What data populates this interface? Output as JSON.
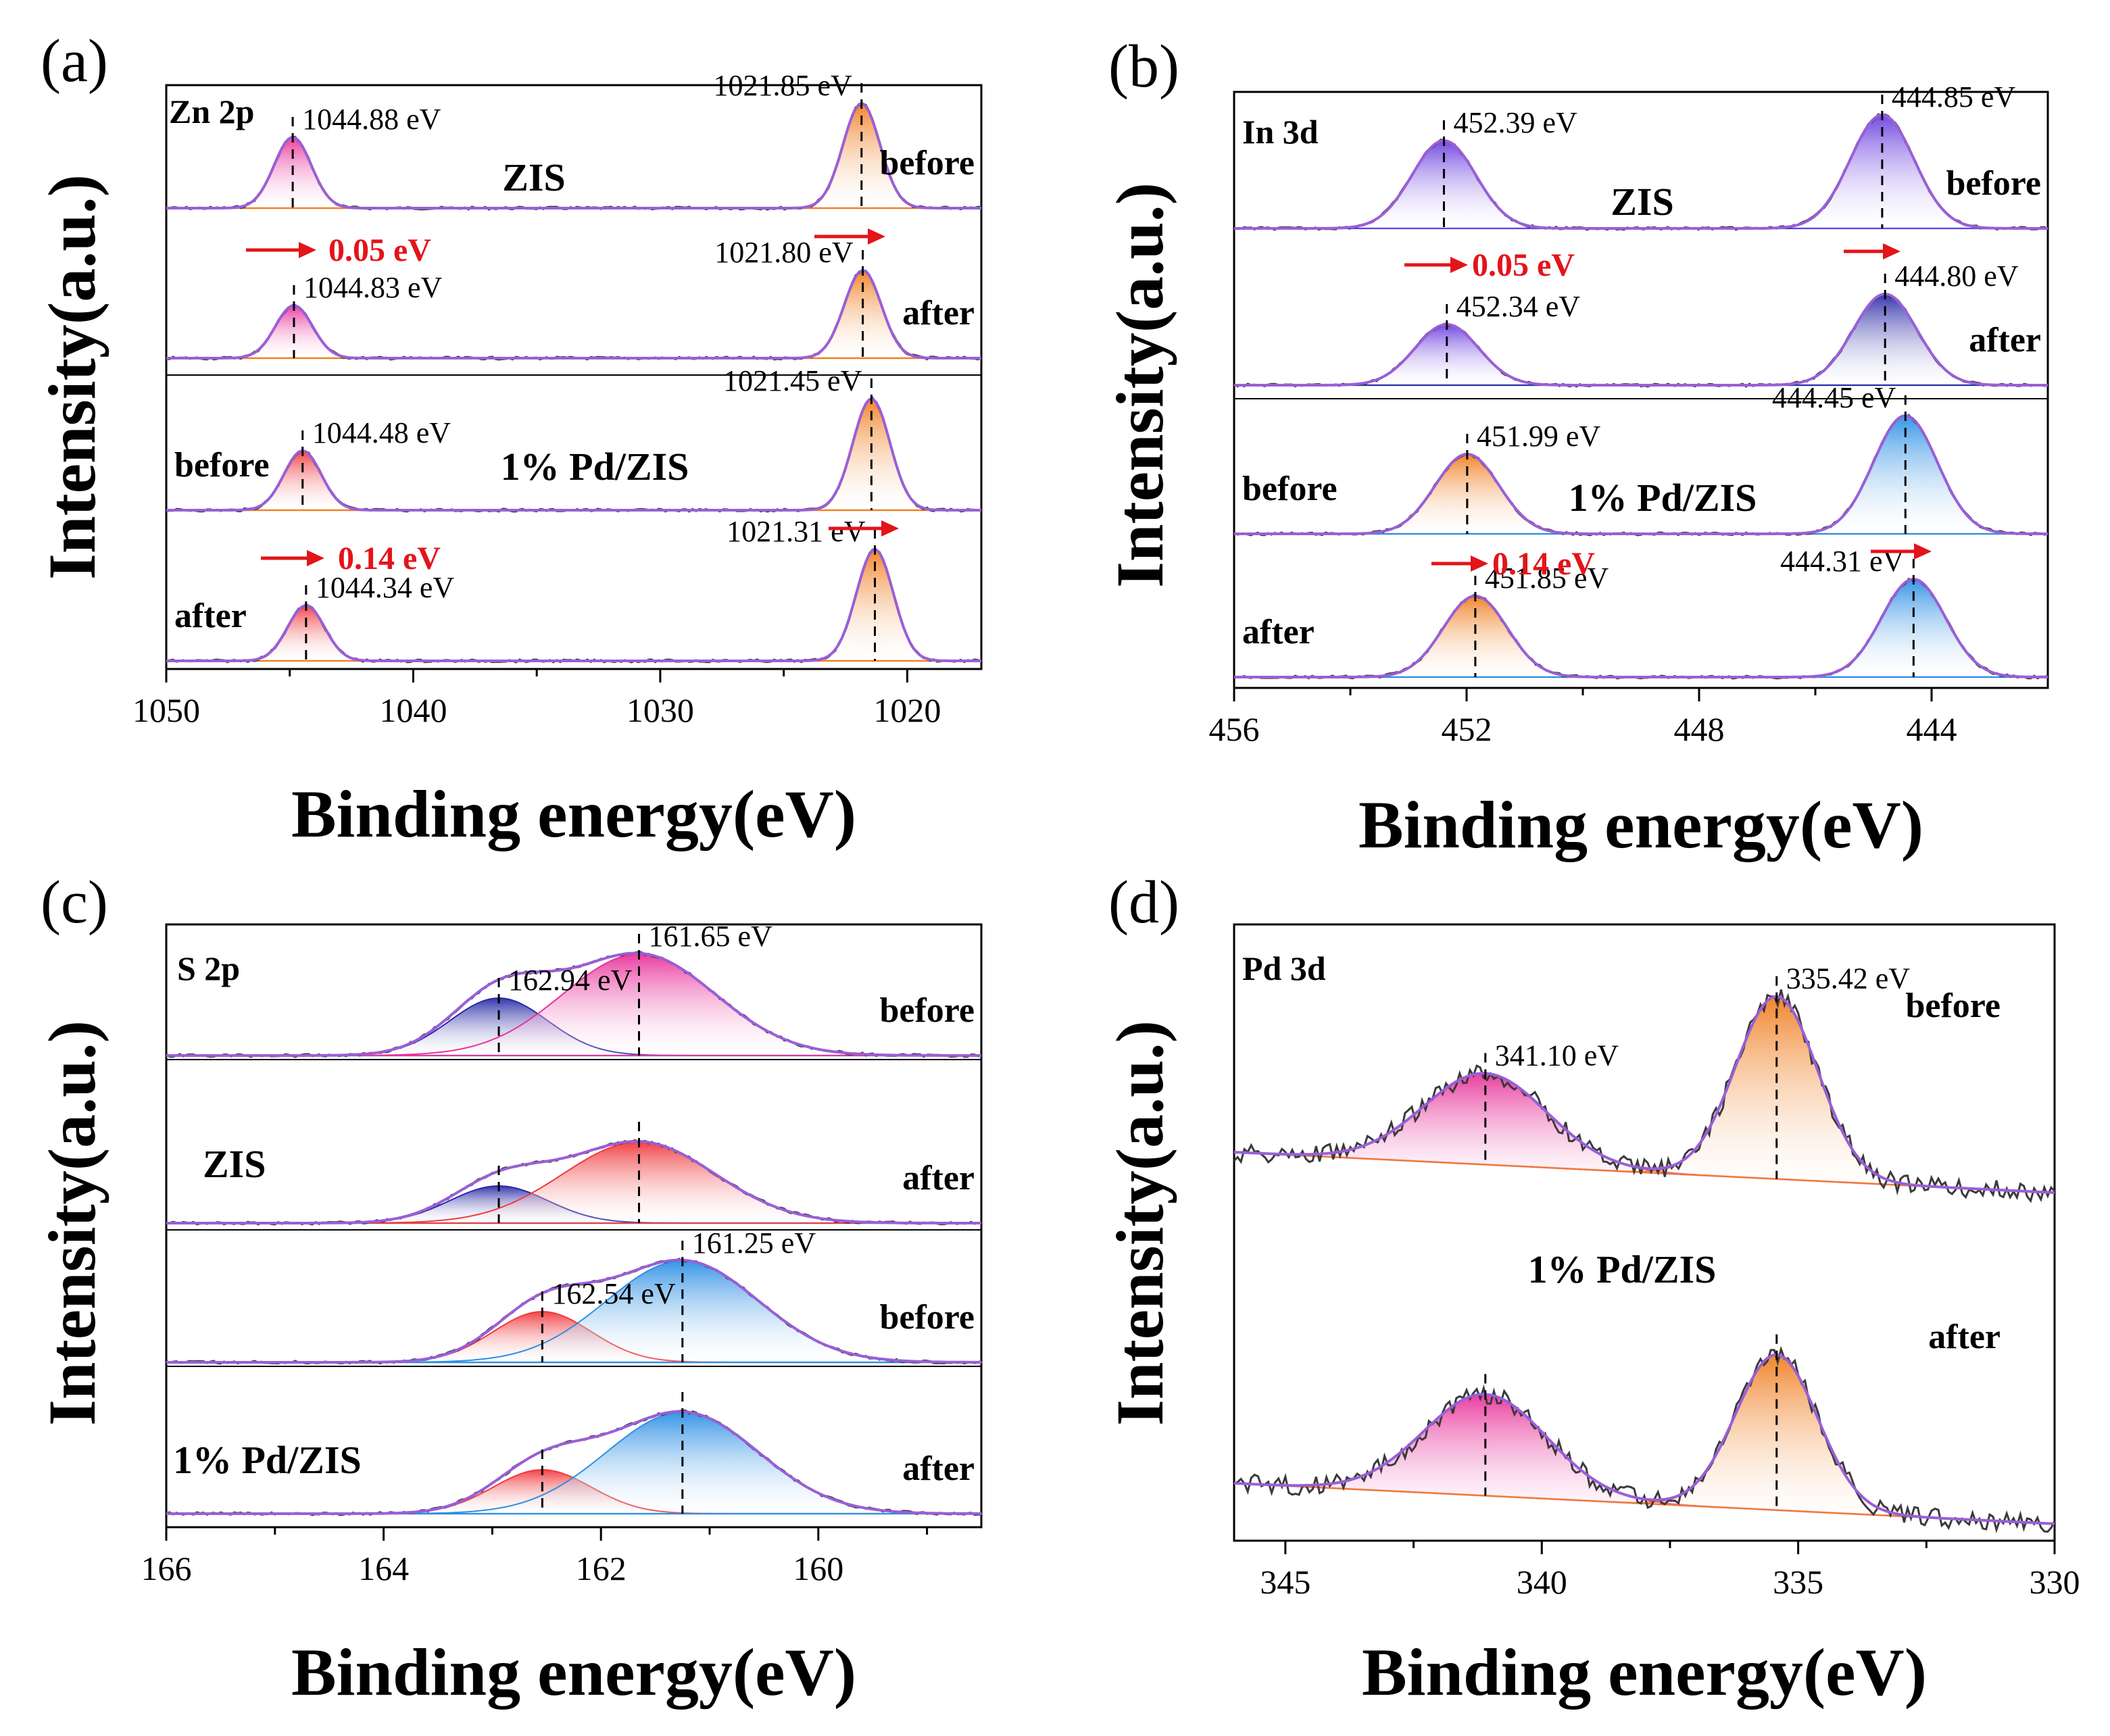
{
  "figure": {
    "type": "XPS spectra",
    "panel_count": 4
  },
  "colors": {
    "axis": "#000000",
    "raw": "#3a3a3a",
    "envelope": "#9a5fd6",
    "red_text": "#e3141a",
    "arrow": "#e3141a",
    "background_line_orange": "#f4c59a",
    "background_line_blue": "#a9cdf2",
    "background_line_pink": "#f0a7d8",
    "fill_orange": "#f07e20",
    "fill_purple": "#6a3fe0",
    "fill_pink": "#e8339b",
    "fill_red": "#f0393c",
    "fill_blue": "#2d8fe4",
    "fill_navy": "#2a2aa8"
  },
  "chart_data": [
    {
      "type": "line",
      "panel_label": "(a)",
      "element": "Zn 2p",
      "xlabel": "Binding energy(eV)",
      "ylabel": "Intensity(a.u.)",
      "xlim": [
        1050,
        1017
      ],
      "x_ticks": [
        "1050",
        "1040",
        "1030",
        "1020"
      ],
      "group_labels": [
        "ZIS",
        "1% Pd/ZIS"
      ],
      "series": [
        {
          "name": "ZIS before",
          "state": "before",
          "peaks": [
            {
              "center": 1044.88,
              "label": "1044.88 eV",
              "fill": "fill_pink"
            },
            {
              "center": 1021.85,
              "label": "1021.85 eV",
              "fill": "fill_orange"
            }
          ]
        },
        {
          "name": "ZIS after",
          "state": "after",
          "peaks": [
            {
              "center": 1044.83,
              "label": "1044.83 eV",
              "fill": "fill_pink"
            },
            {
              "center": 1021.8,
              "label": "1021.80 eV",
              "fill": "fill_orange"
            }
          ]
        },
        {
          "name": "1% Pd/ZIS before",
          "state": "before",
          "peaks": [
            {
              "center": 1044.48,
              "label": "1044.48 eV",
              "fill": "fill_red"
            },
            {
              "center": 1021.45,
              "label": "1021.45 eV",
              "fill": "fill_orange"
            }
          ]
        },
        {
          "name": "1% Pd/ZIS after",
          "state": "after",
          "peaks": [
            {
              "center": 1044.34,
              "label": "1044.34 eV",
              "fill": "fill_red"
            },
            {
              "center": 1021.31,
              "label": "1021.31 eV",
              "fill": "fill_orange"
            }
          ]
        }
      ],
      "shift_labels": [
        "0.05 eV",
        "0.14 eV"
      ]
    },
    {
      "type": "line",
      "panel_label": "(b)",
      "element": "In 3d",
      "xlabel": "Binding energy(eV)",
      "ylabel": "Intensity(a.u.)",
      "xlim": [
        456,
        442
      ],
      "x_ticks": [
        "456",
        "452",
        "448",
        "444"
      ],
      "group_labels": [
        "ZIS",
        "1% Pd/ZIS"
      ],
      "series": [
        {
          "name": "ZIS before",
          "state": "before",
          "peaks": [
            {
              "center": 452.39,
              "label": "452.39 eV",
              "fill": "fill_purple"
            },
            {
              "center": 444.85,
              "label": "444.85 eV",
              "fill": "fill_purple"
            }
          ]
        },
        {
          "name": "ZIS after",
          "state": "after",
          "peaks": [
            {
              "center": 452.34,
              "label": "452.34 eV",
              "fill": "fill_purple"
            },
            {
              "center": 444.8,
              "label": "444.80 eV",
              "fill": "fill_navy"
            }
          ]
        },
        {
          "name": "1% Pd/ZIS before",
          "state": "before",
          "peaks": [
            {
              "center": 451.99,
              "label": "451.99 eV",
              "fill": "fill_orange"
            },
            {
              "center": 444.45,
              "label": "444.45 eV",
              "fill": "fill_blue"
            }
          ]
        },
        {
          "name": "1% Pd/ZIS after",
          "state": "after",
          "peaks": [
            {
              "center": 451.85,
              "label": "451.85 eV",
              "fill": "fill_orange"
            },
            {
              "center": 444.31,
              "label": "444.31 eV",
              "fill": "fill_blue"
            }
          ]
        }
      ],
      "shift_labels": [
        "0.05 eV",
        "0.14 eV"
      ]
    },
    {
      "type": "line",
      "panel_label": "(c)",
      "element": "S 2p",
      "xlabel": "Binding energy(eV)",
      "ylabel": "Intensity(a.u.)",
      "xlim": [
        166,
        158.5
      ],
      "x_ticks": [
        "166",
        "164",
        "162",
        "160"
      ],
      "group_labels": [
        "ZIS",
        "1% Pd/ZIS"
      ],
      "series": [
        {
          "name": "ZIS before",
          "state": "before",
          "peaks": [
            {
              "center": 162.94,
              "label": "162.94 eV",
              "fill": "fill_navy"
            },
            {
              "center": 161.65,
              "label": "161.65 eV",
              "fill": "fill_pink"
            }
          ]
        },
        {
          "name": "ZIS after",
          "state": "after",
          "peaks": [
            {
              "center": 162.94,
              "label": "",
              "fill": "fill_navy"
            },
            {
              "center": 161.65,
              "label": "",
              "fill": "fill_red"
            }
          ]
        },
        {
          "name": "1% Pd/ZIS before",
          "state": "before",
          "peaks": [
            {
              "center": 162.54,
              "label": "162.54 eV",
              "fill": "fill_red"
            },
            {
              "center": 161.25,
              "label": "161.25 eV",
              "fill": "fill_blue"
            }
          ]
        },
        {
          "name": "1% Pd/ZIS after",
          "state": "after",
          "peaks": [
            {
              "center": 162.54,
              "label": "",
              "fill": "fill_red"
            },
            {
              "center": 161.25,
              "label": "",
              "fill": "fill_blue"
            }
          ]
        }
      ]
    },
    {
      "type": "line",
      "panel_label": "(d)",
      "element": "Pd 3d",
      "xlabel": "Binding energy(eV)",
      "ylabel": "Intensity(a.u.)",
      "xlim": [
        346,
        330
      ],
      "x_ticks": [
        "345",
        "340",
        "335",
        "330"
      ],
      "group_labels": [
        "1% Pd/ZIS"
      ],
      "series": [
        {
          "name": "1% Pd/ZIS before",
          "state": "before",
          "peaks": [
            {
              "center": 341.1,
              "label": "341.10  eV",
              "fill": "fill_pink"
            },
            {
              "center": 335.42,
              "label": "335.42 eV",
              "fill": "fill_orange"
            }
          ]
        },
        {
          "name": "1% Pd/ZIS after",
          "state": "after",
          "peaks": [
            {
              "center": 341.1,
              "label": "",
              "fill": "fill_pink"
            },
            {
              "center": 335.42,
              "label": "",
              "fill": "fill_orange"
            }
          ]
        }
      ]
    }
  ]
}
